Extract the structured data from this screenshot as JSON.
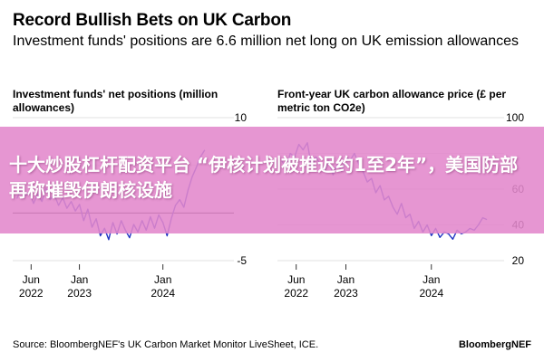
{
  "header": {
    "title": "Record Bullish Bets on UK Carbon",
    "subtitle": "Investment funds' positions are 6.6 million net long on UK emission allowances"
  },
  "overlay": {
    "banner_text": "十大炒股杠杆配资平台 “伊核计划被推迟约1至2年”，美国防部再称摧毁伊朗核设施"
  },
  "footer": {
    "source": "Source: BloombergNEF's UK Carbon Market Monitor LiveSheet, ICE.",
    "brand": "BloombergNEF"
  },
  "colors": {
    "line": "#2236c4",
    "grid": "#d8d8d8",
    "zero_line": "#000000",
    "banner": "#e288cc"
  },
  "chart_data": [
    {
      "type": "line",
      "title": "Investment funds' net positions (million allowances)",
      "ylim": [
        -5,
        10
      ],
      "y_ticks": [
        10,
        "",
        "",
        -5
      ],
      "y_tick_values": [
        10,
        5,
        0,
        -5
      ],
      "x_ticks": [
        {
          "label_top": "Jun",
          "label_bottom": "2022",
          "x": 2022.42
        },
        {
          "label_top": "Jan",
          "label_bottom": "2023",
          "x": 2023.0
        },
        {
          "label_top": "Jan",
          "label_bottom": "2024",
          "x": 2024.0
        }
      ],
      "xlim": [
        2022.2,
        2024.85
      ],
      "series": [
        {
          "x": [
            2022.25,
            2022.3,
            2022.35,
            2022.4,
            2022.45,
            2022.5,
            2022.55,
            2022.6,
            2022.65,
            2022.7,
            2022.75,
            2022.8,
            2022.85,
            2022.9,
            2022.95,
            2023.0,
            2023.05,
            2023.1,
            2023.15,
            2023.2,
            2023.25,
            2023.3,
            2023.35,
            2023.4,
            2023.45,
            2023.5,
            2023.55,
            2023.6,
            2023.65,
            2023.7,
            2023.75,
            2023.8,
            2023.85,
            2023.9,
            2023.95,
            2024.0,
            2024.05,
            2024.1,
            2024.15,
            2024.2,
            2024.25,
            2024.3,
            2024.35,
            2024.4,
            2024.45,
            2024.5
          ],
          "values": [
            1.5,
            2.5,
            1.8,
            2.2,
            1.0,
            2.0,
            1.2,
            2.6,
            1.4,
            1.9,
            0.8,
            1.6,
            0.5,
            1.2,
            0.2,
            0.9,
            -0.8,
            0.4,
            -1.5,
            -0.6,
            -2.4,
            -1.6,
            -2.8,
            -1.0,
            -2.2,
            -0.8,
            -1.8,
            -2.6,
            -1.2,
            -2.0,
            -0.8,
            -1.8,
            -0.4,
            -1.6,
            -0.2,
            -1.0,
            -2.4,
            -0.6,
            0.8,
            1.4,
            0.6,
            2.4,
            3.8,
            4.8,
            5.9,
            6.6
          ]
        }
      ]
    },
    {
      "type": "line",
      "title": "Front-year UK carbon allowance price (£ per metric ton CO2e)",
      "ylim": [
        20,
        100
      ],
      "y_ticks": [
        100,
        "",
        60,
        40,
        20
      ],
      "y_tick_values": [
        100,
        80,
        60,
        40,
        20
      ],
      "x_ticks": [
        {
          "label_top": "Jun",
          "label_bottom": "2022",
          "x": 2022.42
        },
        {
          "label_top": "Jan",
          "label_bottom": "2023",
          "x": 2023.0
        },
        {
          "label_top": "Jan",
          "label_bottom": "2024",
          "x": 2024.0
        }
      ],
      "xlim": [
        2022.2,
        2024.85
      ],
      "series": [
        {
          "x": [
            2022.25,
            2022.3,
            2022.35,
            2022.4,
            2022.45,
            2022.5,
            2022.55,
            2022.6,
            2022.65,
            2022.7,
            2022.75,
            2022.8,
            2022.85,
            2022.9,
            2022.95,
            2023.0,
            2023.05,
            2023.1,
            2023.15,
            2023.2,
            2023.25,
            2023.3,
            2023.35,
            2023.4,
            2023.45,
            2023.5,
            2023.55,
            2023.6,
            2023.65,
            2023.7,
            2023.75,
            2023.8,
            2023.85,
            2023.9,
            2023.95,
            2024.0,
            2024.05,
            2024.1,
            2024.15,
            2024.2,
            2024.25,
            2024.3,
            2024.35,
            2024.4,
            2024.45,
            2024.5,
            2024.55,
            2024.6,
            2024.65
          ],
          "values": [
            76,
            72,
            80,
            78,
            85,
            82,
            86,
            72,
            78,
            74,
            70,
            76,
            68,
            74,
            70,
            78,
            76,
            80,
            74,
            70,
            64,
            66,
            58,
            62,
            54,
            56,
            50,
            46,
            52,
            44,
            46,
            38,
            42,
            36,
            40,
            34,
            38,
            33,
            36,
            35,
            32,
            37,
            35,
            36,
            38,
            37,
            40,
            44,
            43
          ]
        }
      ]
    }
  ]
}
